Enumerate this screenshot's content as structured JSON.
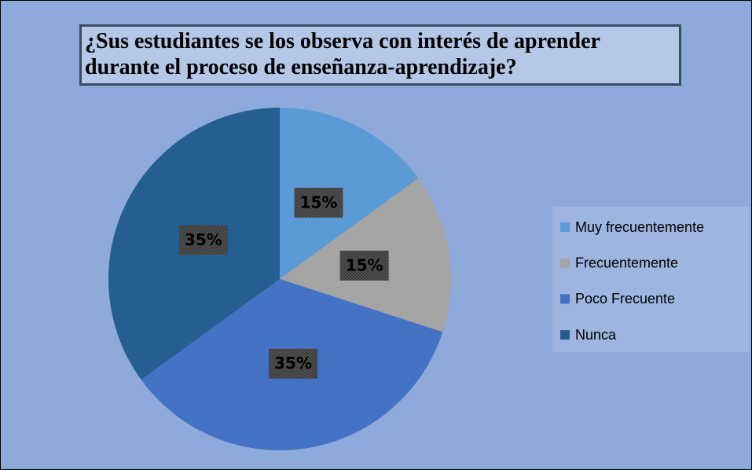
{
  "chart_data": {
    "type": "pie",
    "title": "¿Sus estudiantes se los observa con interés de aprender durante el proceso de enseñanza-aprendizaje?",
    "categories": [
      "Muy frecuentemente",
      "Frecuentemente",
      "Poco Frecuente",
      "Nunca"
    ],
    "values": [
      15,
      15,
      35,
      35
    ],
    "value_labels": [
      "15%",
      "15%",
      "35%",
      "35%"
    ],
    "colors": [
      "#5b9bd5",
      "#a5a5a5",
      "#4472c4",
      "#255e91"
    ],
    "legend": "right"
  }
}
